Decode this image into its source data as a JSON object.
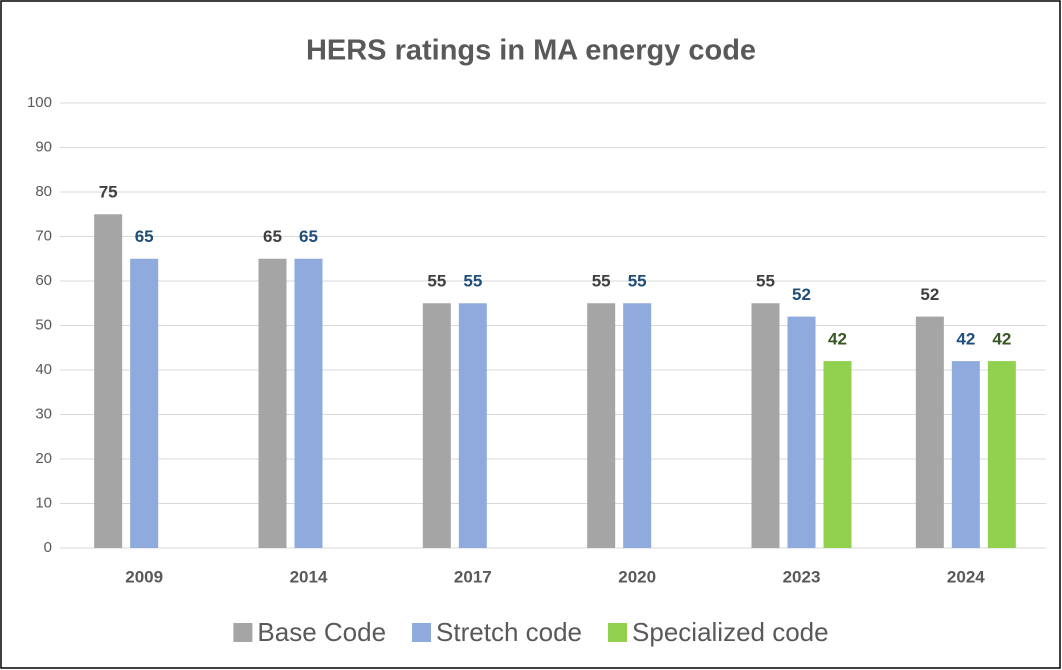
{
  "chart_data": {
    "type": "bar",
    "title": "HERS ratings in MA energy code",
    "categories": [
      "2009",
      "2014",
      "2017",
      "2020",
      "2023",
      "2024"
    ],
    "series": [
      {
        "name": "Base Code",
        "color": "#a5a5a5",
        "label_color": "#404040",
        "values": [
          75,
          65,
          55,
          55,
          55,
          52
        ]
      },
      {
        "name": "Stretch code",
        "color": "#8faadc",
        "label_color": "#1f4e79",
        "values": [
          65,
          65,
          55,
          55,
          52,
          42
        ]
      },
      {
        "name": "Specialized code",
        "color": "#92d050",
        "label_color": "#375623",
        "values": [
          null,
          null,
          null,
          null,
          42,
          42
        ]
      }
    ],
    "ylim": [
      0,
      100
    ],
    "yticks": [
      0,
      10,
      20,
      30,
      40,
      50,
      60,
      70,
      80,
      90,
      100
    ],
    "grid": true,
    "legend": "bottom"
  }
}
